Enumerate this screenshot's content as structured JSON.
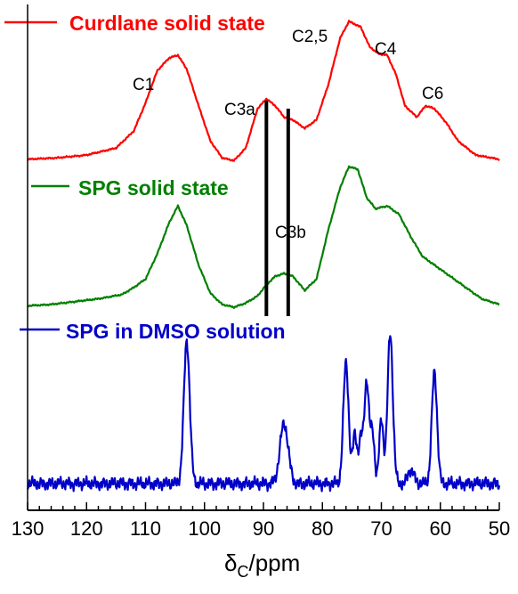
{
  "chart_data": {
    "type": "line",
    "title": "",
    "xlabel_main": "δ",
    "xlabel_sub": "C",
    "xlabel_unit": "/ppm",
    "ylabel": "",
    "xlim": [
      130,
      50
    ],
    "x_reversed": true,
    "grid": false,
    "x_ticks": [
      "130",
      "120",
      "110",
      "100",
      "90",
      "80",
      "70",
      "60",
      "50"
    ],
    "series": [
      {
        "name": "Curdlane solid state",
        "color": "#ff0000",
        "points": [
          [
            130,
            0.02
          ],
          [
            125,
            0.03
          ],
          [
            120,
            0.05
          ],
          [
            115,
            0.1
          ],
          [
            112,
            0.22
          ],
          [
            110,
            0.42
          ],
          [
            108,
            0.65
          ],
          [
            106,
            0.74
          ],
          [
            104.5,
            0.76
          ],
          [
            103,
            0.66
          ],
          [
            101,
            0.4
          ],
          [
            99,
            0.15
          ],
          [
            97,
            0.03
          ],
          [
            95,
            0.01
          ],
          [
            93,
            0.1
          ],
          [
            91,
            0.38
          ],
          [
            89.5,
            0.45
          ],
          [
            88,
            0.4
          ],
          [
            86.5,
            0.32
          ],
          [
            85,
            0.3
          ],
          [
            83,
            0.24
          ],
          [
            81,
            0.3
          ],
          [
            79,
            0.55
          ],
          [
            77,
            0.88
          ],
          [
            75.5,
            1.0
          ],
          [
            73.5,
            0.96
          ],
          [
            72,
            0.82
          ],
          [
            70.5,
            0.77
          ],
          [
            69,
            0.76
          ],
          [
            67.5,
            0.62
          ],
          [
            66,
            0.4
          ],
          [
            64,
            0.32
          ],
          [
            62.5,
            0.4
          ],
          [
            61,
            0.38
          ],
          [
            59,
            0.28
          ],
          [
            57,
            0.15
          ],
          [
            54,
            0.05
          ],
          [
            50,
            0.02
          ]
        ]
      },
      {
        "name": "SPG solid state",
        "color": "#008000",
        "points": [
          [
            130,
            0.01
          ],
          [
            126,
            0.02
          ],
          [
            122,
            0.04
          ],
          [
            118,
            0.06
          ],
          [
            114,
            0.09
          ],
          [
            112,
            0.14
          ],
          [
            110,
            0.2
          ],
          [
            108,
            0.38
          ],
          [
            106,
            0.6
          ],
          [
            104.5,
            0.72
          ],
          [
            103,
            0.58
          ],
          [
            101,
            0.3
          ],
          [
            99,
            0.1
          ],
          [
            97,
            0.02
          ],
          [
            95,
            0.0
          ],
          [
            93,
            0.03
          ],
          [
            91,
            0.08
          ],
          [
            89.5,
            0.16
          ],
          [
            88,
            0.22
          ],
          [
            86.5,
            0.24
          ],
          [
            85,
            0.22
          ],
          [
            83,
            0.12
          ],
          [
            81,
            0.2
          ],
          [
            79,
            0.55
          ],
          [
            77,
            0.85
          ],
          [
            75.5,
            1.0
          ],
          [
            74,
            0.98
          ],
          [
            72.5,
            0.78
          ],
          [
            71,
            0.7
          ],
          [
            69,
            0.72
          ],
          [
            67,
            0.66
          ],
          [
            65,
            0.5
          ],
          [
            63,
            0.36
          ],
          [
            61,
            0.3
          ],
          [
            59,
            0.24
          ],
          [
            57,
            0.18
          ],
          [
            55,
            0.12
          ],
          [
            53,
            0.06
          ],
          [
            50,
            0.02
          ]
        ]
      },
      {
        "name": "SPG in DMSO solution",
        "color": "#0000c8",
        "peaks": [
          [
            103,
            1.0,
            0.5
          ],
          [
            86.5,
            0.42,
            0.7
          ],
          [
            76,
            0.85,
            0.45
          ],
          [
            74.5,
            0.35,
            0.35
          ],
          [
            73.5,
            0.3,
            0.35
          ],
          [
            72.5,
            0.72,
            0.4
          ],
          [
            71.5,
            0.35,
            0.35
          ],
          [
            70,
            0.45,
            0.35
          ],
          [
            68.5,
            1.05,
            0.45
          ],
          [
            61,
            0.78,
            0.45
          ],
          [
            65,
            0.1,
            0.5
          ]
        ],
        "noise_amplitude": 0.05
      }
    ],
    "annotations": [
      "C1",
      "C3a",
      "C2,5",
      "C4",
      "C6",
      "C3b"
    ],
    "reference_lines_ppm": [
      89.5,
      85.8
    ]
  }
}
